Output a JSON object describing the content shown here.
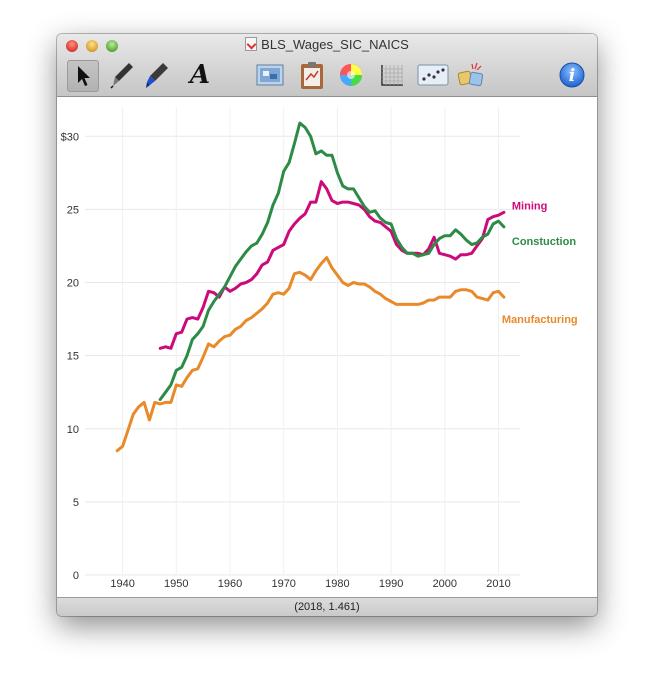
{
  "window": {
    "title": "BLS_Wages_SIC_NAICS"
  },
  "toolbar": {
    "tools": [
      {
        "name": "pointer-tool-icon"
      },
      {
        "name": "pen-tool-icon"
      },
      {
        "name": "marker-tool-icon"
      },
      {
        "name": "text-tool-icon",
        "glyph": "A"
      },
      {
        "name": "image-tool-icon"
      },
      {
        "name": "clipboard-tool-icon"
      },
      {
        "name": "color-wheel-icon"
      },
      {
        "name": "grid-tool-icon"
      },
      {
        "name": "scatter-tool-icon"
      },
      {
        "name": "shapes-tool-icon"
      },
      {
        "name": "info-icon",
        "glyph": "i"
      }
    ]
  },
  "status": {
    "coordinate": "(2018, 1.461)"
  },
  "colors": {
    "mining": "#cc0a7a",
    "construction": "#2e8b46",
    "manufacturing": "#e88a2a"
  },
  "chart_data": {
    "type": "line",
    "title": "",
    "xlabel": "",
    "ylabel": "",
    "xlim": [
      1933,
      2014
    ],
    "ylim": [
      0,
      32
    ],
    "x_ticks": [
      1940,
      1950,
      1960,
      1970,
      1980,
      1990,
      2000,
      2010
    ],
    "x_tick_labels": [
      "1940",
      "1950",
      "1960",
      "1970",
      "1980",
      "1990",
      "2000",
      "2010"
    ],
    "y_ticks": [
      0,
      5,
      10,
      15,
      20,
      25,
      30
    ],
    "y_tick_labels": [
      "0",
      "5",
      "10",
      "15",
      "20",
      "25",
      "$30"
    ],
    "grid": true,
    "legend": "inline-right",
    "series": [
      {
        "name": "Mining",
        "color": "#cc0a7a",
        "x": [
          1947,
          1948,
          1949,
          1950,
          1951,
          1952,
          1953,
          1954,
          1955,
          1956,
          1957,
          1958,
          1959,
          1960,
          1961,
          1962,
          1963,
          1964,
          1965,
          1966,
          1967,
          1968,
          1969,
          1970,
          1971,
          1972,
          1973,
          1974,
          1975,
          1976,
          1977,
          1978,
          1979,
          1980,
          1981,
          1982,
          1983,
          1984,
          1985,
          1986,
          1987,
          1988,
          1989,
          1990,
          1991,
          1992,
          1993,
          1994,
          1995,
          1996,
          1997,
          1998,
          1999,
          2000,
          2001,
          2002,
          2003,
          2004,
          2005,
          2006,
          2007,
          2008,
          2009,
          2010,
          2011
        ],
        "y": [
          15.5,
          15.6,
          15.5,
          16.5,
          16.6,
          17.5,
          17.6,
          17.5,
          18.3,
          19.4,
          19.3,
          19.0,
          19.7,
          19.4,
          19.6,
          19.9,
          20.0,
          20.2,
          20.6,
          21.2,
          21.4,
          22.2,
          22.4,
          22.6,
          23.5,
          24.0,
          24.4,
          24.7,
          25.5,
          25.5,
          26.9,
          26.4,
          25.6,
          25.4,
          25.5,
          25.5,
          25.4,
          25.3,
          25.0,
          24.5,
          24.2,
          24.1,
          23.8,
          23.5,
          22.6,
          22.2,
          22.0,
          22.0,
          22.0,
          21.9,
          22.3,
          23.1,
          22.0,
          21.9,
          21.8,
          21.6,
          21.9,
          21.9,
          22.0,
          22.5,
          23.0,
          24.3,
          24.5,
          24.6,
          24.8
        ],
        "label": "Mining"
      },
      {
        "name": "Constuction",
        "color": "#2e8b46",
        "x": [
          1947,
          1948,
          1949,
          1950,
          1951,
          1952,
          1953,
          1954,
          1955,
          1956,
          1957,
          1958,
          1959,
          1960,
          1961,
          1962,
          1963,
          1964,
          1965,
          1966,
          1967,
          1968,
          1969,
          1970,
          1971,
          1972,
          1973,
          1974,
          1975,
          1976,
          1977,
          1978,
          1979,
          1980,
          1981,
          1982,
          1983,
          1984,
          1985,
          1986,
          1987,
          1988,
          1989,
          1990,
          1991,
          1992,
          1993,
          1994,
          1995,
          1996,
          1997,
          1998,
          1999,
          2000,
          2001,
          2002,
          2003,
          2004,
          2005,
          2006,
          2007,
          2008,
          2009,
          2010,
          2011
        ],
        "y": [
          12.0,
          12.5,
          13.0,
          14.0,
          14.2,
          15.0,
          16.1,
          16.5,
          17.0,
          18.1,
          18.7,
          19.2,
          19.7,
          20.4,
          21.1,
          21.6,
          22.1,
          22.5,
          22.7,
          23.3,
          24.1,
          25.3,
          26.1,
          27.6,
          28.2,
          29.5,
          30.9,
          30.6,
          30.0,
          28.8,
          29.0,
          28.7,
          28.7,
          27.5,
          26.6,
          26.4,
          26.4,
          25.8,
          25.2,
          24.8,
          24.9,
          24.4,
          24.1,
          24.0,
          23.0,
          22.4,
          22.0,
          22.0,
          21.8,
          21.9,
          22.0,
          22.6,
          23.0,
          23.2,
          23.2,
          23.6,
          23.3,
          22.9,
          22.6,
          22.7,
          23.1,
          23.3,
          24.0,
          24.2,
          23.8
        ],
        "label": "Constuction"
      },
      {
        "name": "Manufacturing",
        "color": "#e88a2a",
        "x": [
          1939,
          1940,
          1941,
          1942,
          1943,
          1944,
          1945,
          1946,
          1947,
          1948,
          1949,
          1950,
          1951,
          1952,
          1953,
          1954,
          1955,
          1956,
          1957,
          1958,
          1959,
          1960,
          1961,
          1962,
          1963,
          1964,
          1965,
          1966,
          1967,
          1968,
          1969,
          1970,
          1971,
          1972,
          1973,
          1974,
          1975,
          1976,
          1977,
          1978,
          1979,
          1980,
          1981,
          1982,
          1983,
          1984,
          1985,
          1986,
          1987,
          1988,
          1989,
          1990,
          1991,
          1992,
          1993,
          1994,
          1995,
          1996,
          1997,
          1998,
          1999,
          2000,
          2001,
          2002,
          2003,
          2004,
          2005,
          2006,
          2007,
          2008,
          2009,
          2010,
          2011
        ],
        "y": [
          8.5,
          8.8,
          9.9,
          11.0,
          11.5,
          11.8,
          10.6,
          11.8,
          11.7,
          11.8,
          11.8,
          13.0,
          12.9,
          13.5,
          14.0,
          14.1,
          14.9,
          15.8,
          15.6,
          16.0,
          16.3,
          16.4,
          16.8,
          17.0,
          17.4,
          17.6,
          17.9,
          18.2,
          18.6,
          19.2,
          19.3,
          19.2,
          19.6,
          20.6,
          20.7,
          20.5,
          20.2,
          20.8,
          21.3,
          21.7,
          21.0,
          20.5,
          20.0,
          19.8,
          20.0,
          19.9,
          19.9,
          19.7,
          19.4,
          19.2,
          18.9,
          18.7,
          18.5,
          18.5,
          18.5,
          18.5,
          18.5,
          18.6,
          18.8,
          18.8,
          19.0,
          19.0,
          19.0,
          19.4,
          19.5,
          19.5,
          19.4,
          19.0,
          18.9,
          18.8,
          19.3,
          19.4,
          19.0
        ],
        "label": "Manufacturing"
      }
    ]
  }
}
